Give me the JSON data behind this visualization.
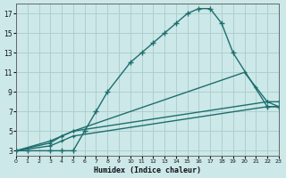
{
  "xlabel": "Humidex (Indice chaleur)",
  "bg_color": "#cce8e8",
  "grid_color": "#aacccc",
  "line_color": "#1e6e6e",
  "xlim": [
    0,
    23
  ],
  "ylim": [
    2.5,
    18.0
  ],
  "xticks": [
    0,
    1,
    2,
    3,
    4,
    5,
    6,
    7,
    8,
    9,
    10,
    11,
    12,
    13,
    14,
    15,
    16,
    17,
    18,
    19,
    20,
    21,
    22,
    23
  ],
  "yticks": [
    3,
    5,
    7,
    9,
    11,
    13,
    15,
    17
  ],
  "curve1_x": [
    0,
    1,
    3,
    4,
    5,
    6,
    7,
    8,
    10,
    11,
    12,
    13,
    14,
    15,
    16,
    17,
    18,
    19,
    22,
    23
  ],
  "curve1_y": [
    3,
    3,
    3,
    3,
    3,
    5,
    7,
    9,
    12,
    13,
    14,
    15,
    16,
    17,
    17.5,
    17.5,
    16,
    13,
    7.5,
    7.5
  ],
  "curve2_x": [
    0,
    3,
    4,
    5,
    20,
    21,
    22,
    23
  ],
  "curve2_y": [
    3,
    4,
    4.5,
    5,
    11,
    9.5,
    8,
    7.5
  ],
  "curve3_x": [
    0,
    3,
    4,
    5,
    22,
    23
  ],
  "curve3_y": [
    3,
    3.8,
    4.5,
    5,
    8,
    8
  ],
  "curve4_x": [
    0,
    3,
    4,
    5,
    22,
    23
  ],
  "curve4_y": [
    3,
    3.5,
    4,
    4.5,
    7.5,
    7.5
  ]
}
